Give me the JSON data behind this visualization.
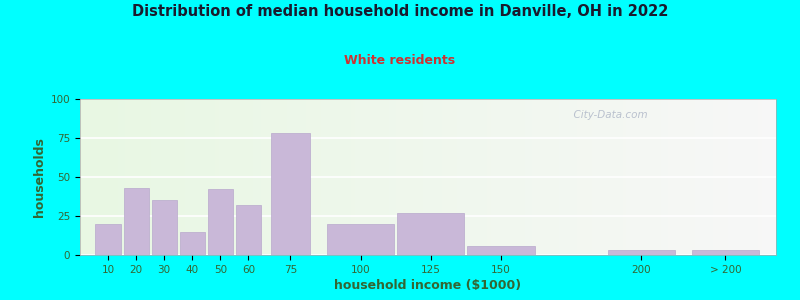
{
  "title": "Distribution of median household income in Danville, OH in 2022",
  "subtitle": "White residents",
  "xlabel": "household income ($1000)",
  "ylabel": "households",
  "background_color": "#00FFFF",
  "bar_color": "#c9b8d8",
  "bar_edge_color": "#b8a8cc",
  "title_color": "#1a1a2e",
  "subtitle_color": "#cc3333",
  "axis_label_color": "#336633",
  "tick_label_color": "#336633",
  "watermark": "  City-Data.com",
  "bar_positions": [
    10,
    20,
    30,
    40,
    50,
    60,
    75,
    100,
    125,
    150,
    200,
    230
  ],
  "bar_widths": [
    9,
    9,
    9,
    9,
    9,
    9,
    14,
    24,
    24,
    24,
    24,
    24
  ],
  "values": [
    20,
    43,
    35,
    15,
    42,
    32,
    78,
    20,
    27,
    6,
    3,
    3
  ],
  "ylim": [
    0,
    100
  ],
  "yticks": [
    0,
    25,
    50,
    75,
    100
  ],
  "xtick_labels": [
    "10",
    "20",
    "30",
    "40",
    "50",
    "60",
    "75",
    "100",
    "125",
    "150",
    "200",
    "> 200"
  ],
  "xtick_positions": [
    10,
    20,
    30,
    40,
    50,
    60,
    75,
    100,
    125,
    150,
    200,
    230
  ],
  "xlim": [
    0,
    248
  ]
}
